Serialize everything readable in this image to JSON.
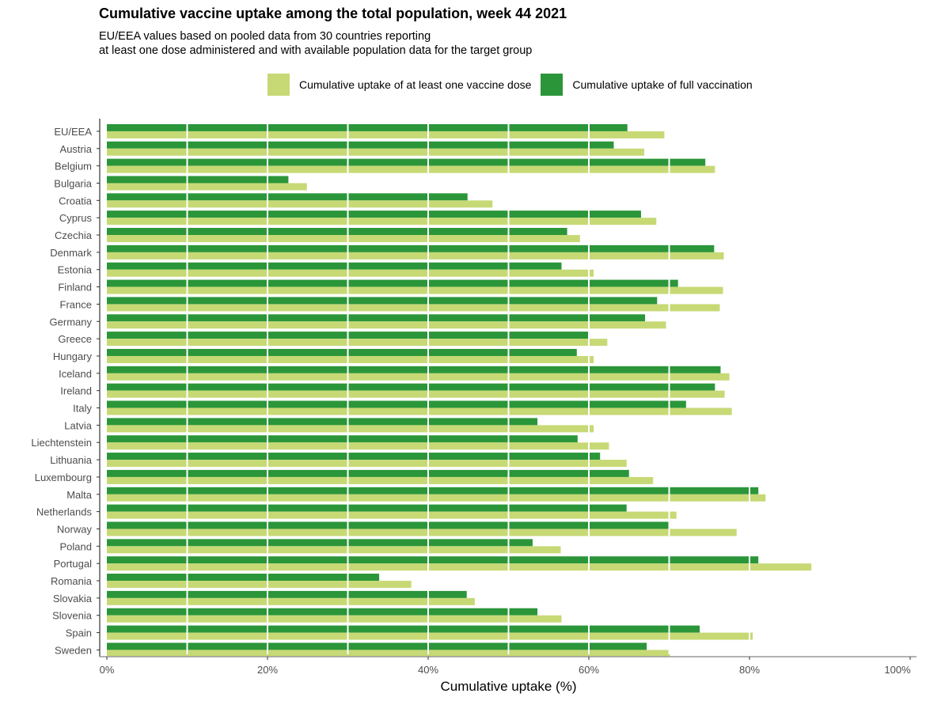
{
  "chart_data": {
    "type": "bar",
    "orientation": "horizontal",
    "title": "Cumulative vaccine uptake among the total population, week 44 2021",
    "subtitle_lines": [
      "EU/EEA values based on pooled data from 30 countries reporting",
      "at least one dose administered and with available population data for the target group"
    ],
    "xlabel": "Cumulative uptake (%)",
    "xlim": [
      0,
      100
    ],
    "xticks": [
      0,
      20,
      40,
      60,
      80,
      100
    ],
    "xtick_labels": [
      "0%",
      "20%",
      "40%",
      "60%",
      "80%",
      "100%"
    ],
    "grid": "vertical white lines over bars at 10% intervals",
    "legend_position": "top",
    "categories": [
      "EU/EEA",
      "Austria",
      "Belgium",
      "Bulgaria",
      "Croatia",
      "Cyprus",
      "Czechia",
      "Denmark",
      "Estonia",
      "Finland",
      "France",
      "Germany",
      "Greece",
      "Hungary",
      "Iceland",
      "Ireland",
      "Italy",
      "Latvia",
      "Liechtenstein",
      "Lithuania",
      "Luxembourg",
      "Malta",
      "Netherlands",
      "Norway",
      "Poland",
      "Portugal",
      "Romania",
      "Slovakia",
      "Slovenia",
      "Spain",
      "Sweden"
    ],
    "series": [
      {
        "name": "Cumulative uptake of at least one vaccine dose",
        "color": "#c7d975",
        "values": [
          69.4,
          66.9,
          75.7,
          24.9,
          48.0,
          68.4,
          58.9,
          76.8,
          60.6,
          76.7,
          76.3,
          69.6,
          62.3,
          60.6,
          77.5,
          76.9,
          77.8,
          60.6,
          62.5,
          64.7,
          68.0,
          82.0,
          70.9,
          78.4,
          56.5,
          87.7,
          37.9,
          45.8,
          56.6,
          80.4,
          70.1
        ]
      },
      {
        "name": "Cumulative uptake of full vaccination",
        "color": "#2b9639",
        "values": [
          64.8,
          63.1,
          74.5,
          22.6,
          44.9,
          66.5,
          57.3,
          75.6,
          56.6,
          71.1,
          68.5,
          67.0,
          59.9,
          58.5,
          76.4,
          75.7,
          72.1,
          53.6,
          58.6,
          61.4,
          65.0,
          81.1,
          64.7,
          69.9,
          53.0,
          81.1,
          33.9,
          44.8,
          53.6,
          73.8,
          67.2
        ]
      }
    ]
  }
}
